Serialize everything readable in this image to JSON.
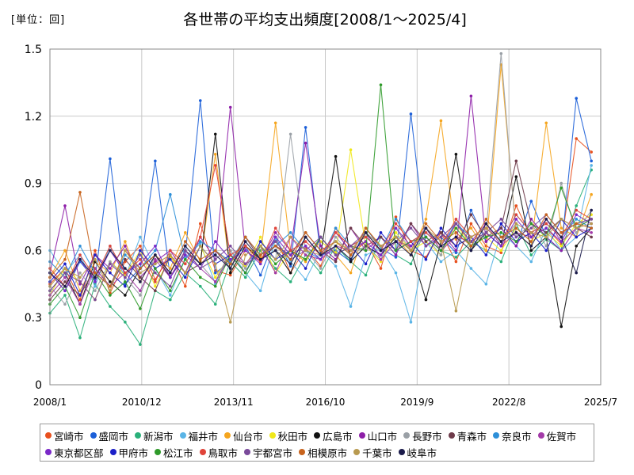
{
  "unit_label": "[単位：回]",
  "chart_data": {
    "type": "line",
    "title": "各世帯の平均支出頻度[2008/1～2025/4]",
    "xlabel": "",
    "ylabel": "",
    "ylim": [
      0,
      1.5
    ],
    "yticks": [
      "0",
      "0.3",
      "0.6",
      "0.9",
      "1.2",
      "1.5"
    ],
    "xticks": [
      "2008/1",
      "2010/12",
      "2013/11",
      "2016/10",
      "2019/9",
      "2022/8",
      "2025/7"
    ],
    "grid": true,
    "legend_position": "bottom",
    "x_start": "2008/1",
    "x_end": "2025/4",
    "series": [
      {
        "name": "宮崎市",
        "color": "#e8501e",
        "values": [
          0.45,
          0.52,
          0.38,
          0.6,
          0.41,
          0.55,
          0.62,
          0.47,
          0.58,
          0.44,
          0.72,
          0.51,
          0.49,
          0.6,
          0.55,
          0.66,
          0.5,
          0.61,
          0.53,
          0.7,
          0.58,
          0.64,
          0.52,
          0.75,
          0.6,
          0.57,
          0.68,
          0.55,
          0.72,
          0.62,
          0.59,
          0.8,
          0.66,
          0.7,
          0.63,
          1.1,
          1.04
        ]
      },
      {
        "name": "盛岡市",
        "color": "#1c5fd8",
        "values": [
          0.5,
          0.42,
          0.55,
          0.47,
          1.01,
          0.45,
          0.52,
          1.0,
          0.48,
          0.58,
          1.27,
          0.5,
          0.55,
          0.62,
          0.49,
          0.66,
          0.53,
          1.15,
          0.58,
          0.6,
          0.55,
          0.7,
          0.61,
          0.57,
          1.21,
          0.62,
          0.66,
          0.59,
          0.78,
          0.64,
          0.7,
          0.62,
          0.82,
          0.66,
          0.6,
          1.28,
          1.0
        ]
      },
      {
        "name": "新潟市",
        "color": "#2ab07a",
        "values": [
          0.32,
          0.4,
          0.21,
          0.45,
          0.35,
          0.28,
          0.18,
          0.42,
          0.38,
          0.5,
          0.44,
          0.36,
          0.55,
          0.48,
          0.6,
          0.52,
          0.46,
          0.58,
          0.5,
          0.62,
          0.55,
          0.49,
          0.66,
          0.58,
          0.54,
          0.7,
          0.6,
          0.57,
          0.64,
          0.6,
          0.55,
          0.72,
          0.58,
          0.65,
          0.6,
          0.8,
          0.96
        ]
      },
      {
        "name": "福井市",
        "color": "#5ab4e6",
        "values": [
          0.6,
          0.5,
          0.58,
          0.44,
          0.62,
          0.48,
          0.66,
          0.52,
          0.4,
          0.57,
          0.63,
          0.45,
          0.6,
          0.5,
          0.42,
          0.65,
          0.55,
          0.47,
          0.6,
          0.53,
          0.35,
          0.58,
          0.61,
          0.5,
          0.28,
          0.64,
          0.55,
          0.6,
          0.52,
          0.45,
          0.68,
          0.62,
          0.55,
          0.7,
          0.6,
          0.66,
          0.98
        ]
      },
      {
        "name": "仙台市",
        "color": "#f5a51e",
        "values": [
          0.48,
          0.6,
          0.42,
          0.55,
          0.5,
          0.64,
          0.46,
          0.58,
          0.52,
          0.68,
          0.55,
          1.03,
          0.5,
          0.62,
          0.57,
          1.17,
          0.6,
          0.55,
          0.66,
          0.58,
          0.5,
          0.7,
          0.62,
          0.66,
          0.58,
          0.74,
          1.18,
          0.65,
          0.7,
          0.6,
          1.43,
          0.68,
          0.62,
          1.17,
          0.7,
          0.66,
          0.85
        ]
      },
      {
        "name": "秋田市",
        "color": "#f0e81a",
        "values": [
          0.4,
          0.52,
          0.46,
          0.38,
          0.55,
          0.49,
          0.6,
          0.44,
          0.57,
          0.5,
          0.62,
          0.48,
          0.58,
          0.53,
          0.66,
          0.5,
          0.6,
          0.56,
          0.64,
          0.59,
          1.05,
          0.62,
          0.55,
          0.68,
          0.6,
          0.64,
          0.58,
          0.72,
          0.62,
          0.66,
          0.6,
          0.7,
          0.64,
          0.68,
          0.62,
          0.72,
          0.76
        ]
      },
      {
        "name": "広島市",
        "color": "#111111",
        "values": [
          0.42,
          0.5,
          0.36,
          0.55,
          0.46,
          0.4,
          0.52,
          0.58,
          0.48,
          0.6,
          0.54,
          1.12,
          0.5,
          0.62,
          0.56,
          0.6,
          0.5,
          0.66,
          0.58,
          1.02,
          0.55,
          0.62,
          0.58,
          0.66,
          0.6,
          0.38,
          0.64,
          1.03,
          0.6,
          0.68,
          0.62,
          0.93,
          0.6,
          0.66,
          0.26,
          0.62,
          0.7
        ]
      },
      {
        "name": "山口市",
        "color": "#8e1fa8",
        "values": [
          0.5,
          0.8,
          0.45,
          0.58,
          0.52,
          0.62,
          0.48,
          0.55,
          0.6,
          0.5,
          0.66,
          0.56,
          1.24,
          0.6,
          0.55,
          0.68,
          0.6,
          1.08,
          0.62,
          0.56,
          0.7,
          0.6,
          0.66,
          0.58,
          0.72,
          0.62,
          0.68,
          0.6,
          1.29,
          0.64,
          0.7,
          0.62,
          0.74,
          0.66,
          0.6,
          0.7,
          0.74
        ]
      },
      {
        "name": "長野市",
        "color": "#9aa0a6",
        "values": [
          0.44,
          0.36,
          0.5,
          0.42,
          0.55,
          0.48,
          0.4,
          0.58,
          0.5,
          0.62,
          0.54,
          0.46,
          0.6,
          0.52,
          0.64,
          0.56,
          1.12,
          0.6,
          0.52,
          0.66,
          0.58,
          0.62,
          0.56,
          0.7,
          0.6,
          0.66,
          0.58,
          0.74,
          0.62,
          0.68,
          1.48,
          0.66,
          0.72,
          0.62,
          0.9,
          0.68,
          0.78
        ]
      },
      {
        "name": "青森市",
        "color": "#6e3b4a",
        "values": [
          0.38,
          0.46,
          0.4,
          0.52,
          0.44,
          0.56,
          0.48,
          0.42,
          0.58,
          0.5,
          0.54,
          0.6,
          0.52,
          0.66,
          0.56,
          0.62,
          0.58,
          0.68,
          0.6,
          0.55,
          0.7,
          0.62,
          0.66,
          0.6,
          0.72,
          0.64,
          0.68,
          0.62,
          0.76,
          0.66,
          0.7,
          1.0,
          0.72,
          0.68,
          0.74,
          0.7,
          0.66
        ]
      },
      {
        "name": "奈良市",
        "color": "#2d8fd8",
        "values": [
          0.55,
          0.48,
          0.62,
          0.5,
          0.44,
          0.58,
          0.52,
          0.6,
          0.85,
          0.56,
          0.64,
          0.6,
          0.55,
          0.66,
          0.58,
          0.62,
          0.68,
          0.6,
          0.56,
          0.7,
          0.62,
          0.66,
          0.6,
          0.74,
          0.64,
          0.68,
          0.62,
          0.72,
          0.66,
          0.7,
          0.64,
          0.76,
          0.68,
          0.72,
          0.66,
          0.74,
          0.7
        ]
      },
      {
        "name": "佐賀市",
        "color": "#a33aa8",
        "values": [
          0.4,
          0.48,
          0.36,
          0.52,
          0.44,
          0.5,
          0.42,
          0.56,
          0.48,
          0.6,
          0.52,
          0.46,
          0.58,
          0.54,
          0.62,
          0.5,
          0.66,
          0.58,
          0.56,
          0.62,
          0.6,
          0.68,
          0.56,
          0.64,
          0.62,
          0.7,
          0.6,
          0.66,
          0.64,
          0.72,
          0.62,
          0.68,
          0.66,
          0.74,
          0.64,
          0.7,
          0.68
        ]
      },
      {
        "name": "東京都区部",
        "color": "#7a28c8",
        "values": [
          0.5,
          0.42,
          0.56,
          0.46,
          0.6,
          0.5,
          0.54,
          0.62,
          0.48,
          0.58,
          0.52,
          0.64,
          0.56,
          0.6,
          0.54,
          0.66,
          0.58,
          0.62,
          0.56,
          0.68,
          0.6,
          0.64,
          0.58,
          0.7,
          0.62,
          0.66,
          0.6,
          0.72,
          0.64,
          0.68,
          0.62,
          0.74,
          0.66,
          0.7,
          0.64,
          0.76,
          0.72
        ]
      },
      {
        "name": "甲府市",
        "color": "#1b1fc8",
        "values": [
          0.46,
          0.54,
          0.4,
          0.58,
          0.5,
          0.44,
          0.6,
          0.52,
          0.56,
          0.48,
          0.62,
          0.54,
          0.58,
          0.5,
          0.64,
          0.56,
          0.6,
          0.52,
          0.66,
          0.58,
          0.62,
          0.54,
          0.68,
          0.6,
          0.64,
          0.56,
          0.7,
          0.62,
          0.66,
          0.58,
          0.72,
          0.64,
          0.68,
          0.6,
          0.74,
          0.66,
          0.7
        ]
      },
      {
        "name": "松江市",
        "color": "#2f9a2a",
        "values": [
          0.36,
          0.44,
          0.3,
          0.5,
          0.4,
          0.46,
          0.34,
          0.52,
          0.42,
          0.56,
          0.48,
          0.44,
          0.58,
          0.5,
          0.62,
          0.54,
          0.6,
          0.56,
          0.66,
          0.58,
          0.62,
          0.6,
          1.34,
          0.6,
          0.64,
          0.66,
          0.6,
          0.7,
          0.62,
          0.66,
          0.68,
          0.64,
          0.72,
          0.66,
          0.88,
          0.7,
          0.74
        ]
      },
      {
        "name": "鳥取市",
        "color": "#e0443a",
        "values": [
          0.52,
          0.44,
          0.58,
          0.48,
          0.62,
          0.5,
          0.56,
          0.46,
          0.6,
          0.54,
          0.66,
          0.98,
          0.58,
          0.62,
          0.55,
          0.7,
          0.6,
          0.64,
          0.58,
          0.68,
          0.62,
          0.66,
          0.6,
          0.72,
          0.64,
          0.68,
          0.62,
          0.74,
          0.66,
          0.7,
          0.64,
          0.76,
          0.68,
          0.72,
          0.66,
          0.78,
          0.74
        ]
      },
      {
        "name": "宇都宮市",
        "color": "#7a4a9a",
        "values": [
          0.42,
          0.5,
          0.46,
          0.38,
          0.54,
          0.48,
          0.58,
          0.5,
          0.44,
          0.6,
          0.52,
          0.56,
          0.62,
          0.54,
          0.58,
          0.64,
          0.56,
          0.6,
          0.66,
          0.58,
          0.62,
          0.68,
          0.6,
          0.64,
          0.7,
          0.62,
          0.66,
          0.72,
          0.64,
          0.68,
          0.74,
          0.66,
          0.7,
          0.76,
          0.68,
          0.72,
          0.74
        ]
      },
      {
        "name": "相模原市",
        "color": "#c8641e",
        "values": [
          0.48,
          0.56,
          0.86,
          0.5,
          0.44,
          0.6,
          0.52,
          0.58,
          0.5,
          0.64,
          0.56,
          0.6,
          0.54,
          0.66,
          0.58,
          0.62,
          0.56,
          0.68,
          0.6,
          0.64,
          0.58,
          0.7,
          0.62,
          0.66,
          0.6,
          0.72,
          0.64,
          0.68,
          0.62,
          0.74,
          0.66,
          0.7,
          0.64,
          0.76,
          0.68,
          0.72,
          0.7
        ]
      },
      {
        "name": "千葉市",
        "color": "#b89a50",
        "values": [
          0.44,
          0.52,
          0.48,
          0.56,
          0.42,
          0.6,
          0.5,
          0.54,
          0.58,
          0.5,
          0.62,
          0.54,
          0.28,
          0.58,
          0.62,
          0.56,
          0.66,
          0.6,
          0.58,
          0.64,
          0.6,
          0.68,
          0.62,
          0.66,
          0.6,
          0.7,
          0.64,
          0.33,
          0.66,
          0.7,
          0.64,
          0.72,
          0.68,
          0.66,
          0.74,
          0.7,
          0.72
        ]
      },
      {
        "name": "岐阜市",
        "color": "#1a1a4a",
        "values": [
          0.5,
          0.44,
          0.56,
          0.48,
          0.6,
          0.52,
          0.46,
          0.58,
          0.5,
          0.62,
          0.54,
          0.58,
          0.52,
          0.64,
          0.56,
          0.6,
          0.54,
          0.66,
          0.58,
          0.62,
          0.56,
          0.68,
          0.6,
          0.64,
          0.58,
          0.7,
          0.62,
          0.66,
          0.6,
          0.72,
          0.64,
          0.68,
          0.62,
          0.74,
          0.66,
          0.5,
          0.78
        ]
      }
    ]
  }
}
